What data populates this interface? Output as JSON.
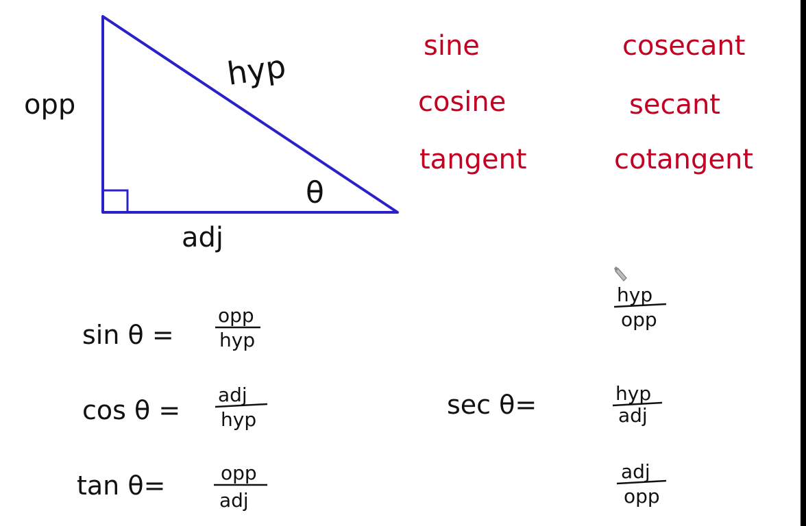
{
  "colors": {
    "background": "#ffffff",
    "triangle": "#2a22c8",
    "black_ink": "#111111",
    "red_ink": "#c40023",
    "pen_cursor": "#7a7a7a"
  },
  "triangle": {
    "opp_label": "opp",
    "hyp_label": "hyp",
    "adj_label": "adj",
    "angle_label": "θ"
  },
  "names": {
    "sine": "sine",
    "cosine": "cosine",
    "tangent": "tangent",
    "cosecant": "cosecant",
    "secant": "secant",
    "cotangent": "cotangent"
  },
  "formulas": {
    "sin": {
      "lhs": "sin θ =",
      "num": "opp",
      "den": "hyp"
    },
    "cos": {
      "lhs": "cos θ =",
      "num": "adj",
      "den": "hyp"
    },
    "tan": {
      "lhs": "tan θ=",
      "num": "opp",
      "den": "adj"
    },
    "sec": {
      "lhs": "sec θ="
    },
    "right_fractions": [
      {
        "num": "hyp",
        "den": "opp"
      },
      {
        "num": "hyp",
        "den": "adj"
      },
      {
        "num": "adj",
        "den": "opp"
      }
    ]
  }
}
